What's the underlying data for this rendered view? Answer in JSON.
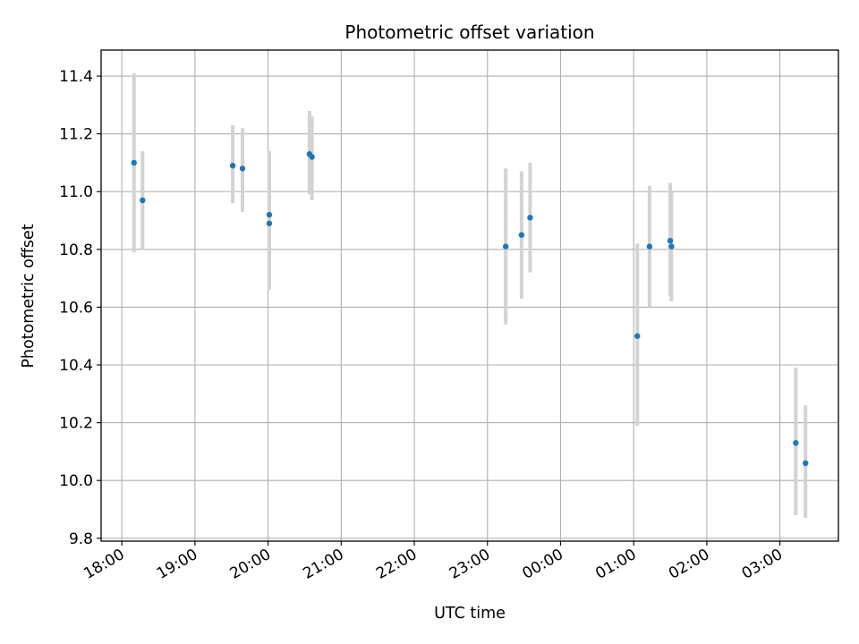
{
  "chart_data": {
    "type": "scatter",
    "title": "Photometric offset variation",
    "xlabel": "UTC time",
    "ylabel": "Photometric offset",
    "grid": true,
    "xlim": [
      "17:43",
      "03:48"
    ],
    "ylim": [
      9.79,
      11.49
    ],
    "x_ticks": [
      "18:00",
      "19:00",
      "20:00",
      "21:00",
      "22:00",
      "23:00",
      "00:00",
      "01:00",
      "02:00",
      "03:00"
    ],
    "y_ticks": [
      "9.8",
      "10.0",
      "10.2",
      "10.4",
      "10.6",
      "10.8",
      "11.0",
      "11.2",
      "11.4"
    ],
    "colors": {
      "point": "#1f77b4",
      "errorbar": "#d3d3d3",
      "grid": "#b0b0b0"
    },
    "points": [
      {
        "x": "18:10",
        "y": 11.1,
        "ymin": 10.79,
        "ymax": 11.41
      },
      {
        "x": "18:17",
        "y": 10.97,
        "ymin": 10.8,
        "ymax": 11.14
      },
      {
        "x": "19:31",
        "y": 11.09,
        "ymin": 10.96,
        "ymax": 11.23
      },
      {
        "x": "19:39",
        "y": 11.08,
        "ymin": 10.93,
        "ymax": 11.22
      },
      {
        "x": "20:01",
        "y": 10.89,
        "ymin": 10.66,
        "ymax": 11.12
      },
      {
        "x": "20:01",
        "y": 10.92,
        "ymin": 10.7,
        "ymax": 11.14
      },
      {
        "x": "20:34",
        "y": 11.13,
        "ymin": 10.99,
        "ymax": 11.28
      },
      {
        "x": "20:36",
        "y": 11.12,
        "ymin": 10.97,
        "ymax": 11.26
      },
      {
        "x": "23:15",
        "y": 10.81,
        "ymin": 10.54,
        "ymax": 11.08
      },
      {
        "x": "23:28",
        "y": 10.85,
        "ymin": 10.63,
        "ymax": 11.07
      },
      {
        "x": "23:35",
        "y": 10.91,
        "ymin": 10.72,
        "ymax": 11.1
      },
      {
        "x": "01:03",
        "y": 10.5,
        "ymin": 10.19,
        "ymax": 10.82
      },
      {
        "x": "01:13",
        "y": 10.81,
        "ymin": 10.6,
        "ymax": 11.02
      },
      {
        "x": "01:30",
        "y": 10.83,
        "ymin": 10.64,
        "ymax": 11.03
      },
      {
        "x": "01:31",
        "y": 10.81,
        "ymin": 10.62,
        "ymax": 11.0
      },
      {
        "x": "03:13",
        "y": 10.13,
        "ymin": 9.88,
        "ymax": 10.39
      },
      {
        "x": "03:21",
        "y": 10.06,
        "ymin": 9.87,
        "ymax": 10.26
      }
    ]
  }
}
